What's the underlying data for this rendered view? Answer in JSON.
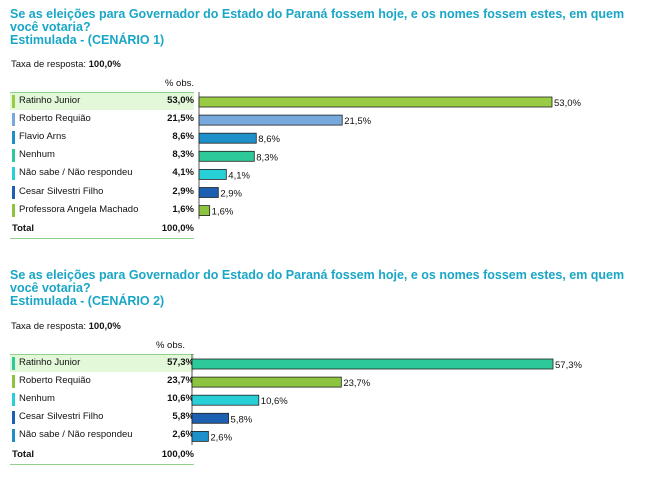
{
  "chart_data": [
    {
      "type": "bar",
      "title": "Se as eleições para Governador do Estado do Paraná fossem hoje, e os nomes fossem estes, em quem você votaria?",
      "subtitle": "Estimulada - (CENÁRIO 1)",
      "response_rate_label": "Taxa de resposta:",
      "response_rate_value": "100,0%",
      "column_header": "% obs.",
      "categories": [
        "Ratinho Junior",
        "Roberto Requião",
        "Flavio Arns",
        "Nenhum",
        "Não sabe / Não respondeu",
        "Cesar Silvestri Filho",
        "Professora Angela Machado"
      ],
      "values": [
        53.0,
        21.5,
        8.6,
        8.3,
        4.1,
        2.9,
        1.6
      ],
      "value_labels": [
        "53,0%",
        "21,5%",
        "8,6%",
        "8,3%",
        "4,1%",
        "2,9%",
        "1,6%"
      ],
      "colors": [
        "#9acb45",
        "#78a9dc",
        "#1d8fc9",
        "#2ec99a",
        "#27cfd6",
        "#1d5fb0",
        "#8cc43f"
      ],
      "total_label": "Total",
      "total_value": "100,0%",
      "xlim": [
        0,
        53.0
      ]
    },
    {
      "type": "bar",
      "title": "Se as eleições para Governador do Estado do Paraná fossem hoje, e os nomes fossem estes, em quem você votaria?",
      "subtitle": "Estimulada - (CENÁRIO 2)",
      "response_rate_label": "Taxa de resposta:",
      "response_rate_value": "100,0%",
      "column_header": "% obs.",
      "categories": [
        "Ratinho Junior",
        "Roberto Requião",
        "Nenhum",
        "Cesar Silvestri Filho",
        "Não sabe / Não respondeu"
      ],
      "values": [
        57.3,
        23.7,
        10.6,
        5.8,
        2.6
      ],
      "value_labels": [
        "57,3%",
        "23,7%",
        "10,6%",
        "5,8%",
        "2,6%"
      ],
      "colors": [
        "#2ec99a",
        "#8cc43f",
        "#27cfd6",
        "#1d5fb0",
        "#1d8fc9"
      ],
      "total_label": "Total",
      "total_value": "100,0%",
      "xlim": [
        0,
        57.3
      ]
    }
  ]
}
